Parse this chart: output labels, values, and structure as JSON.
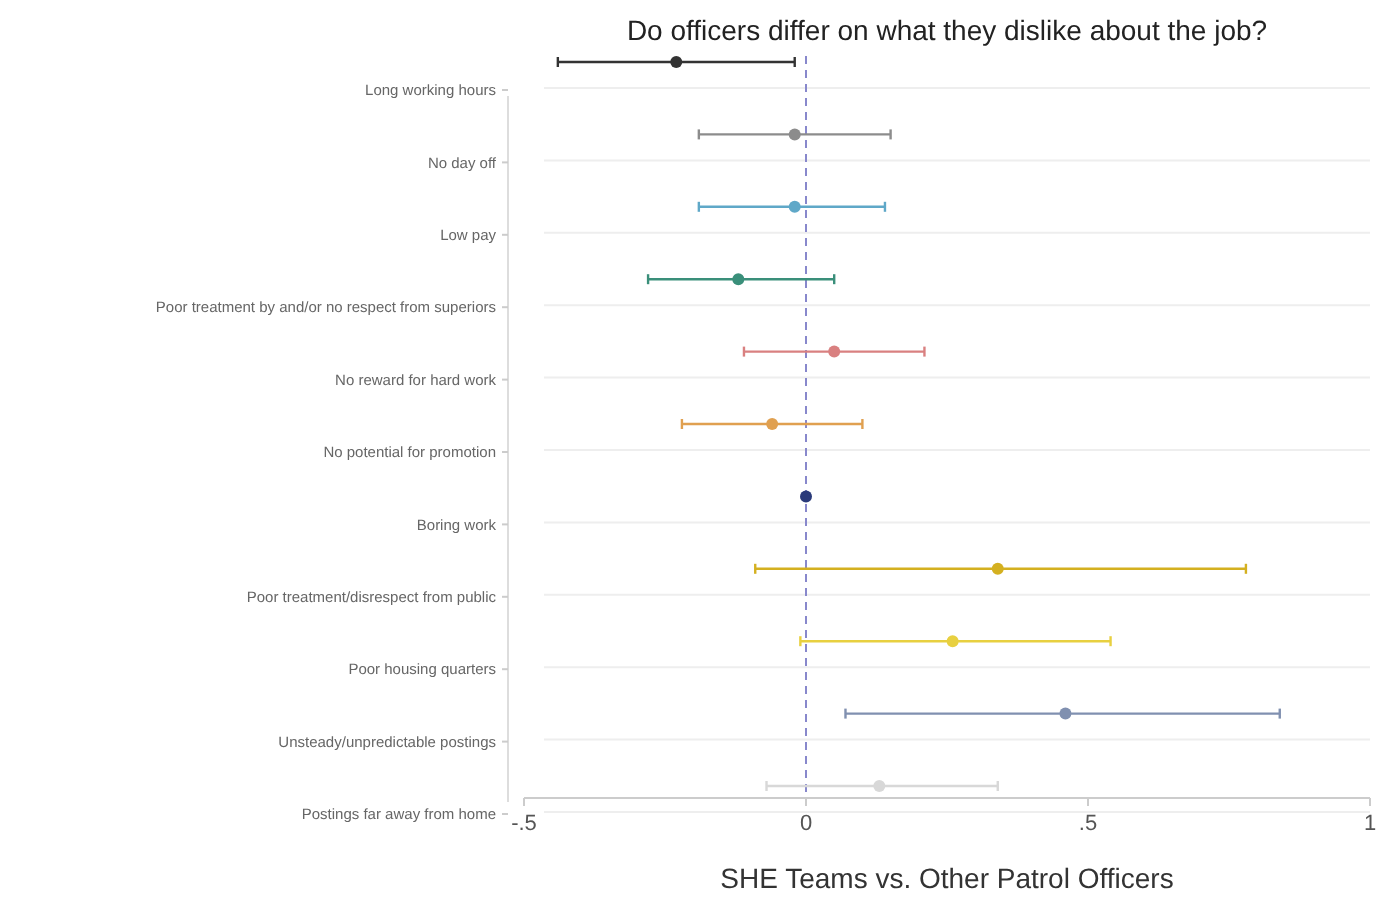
{
  "chart_data": {
    "type": "scatter",
    "orientation": "horizontal",
    "title": "Do officers differ on what they dislike about the job?",
    "xlabel": "SHE Teams vs. Other Patrol Officers",
    "categories": [
      "Long working hours",
      "No day off",
      "Low pay",
      "Poor treatment by and/or no respect from superiors",
      "No reward for hard work",
      "No potential for promotion",
      "Boring work",
      "Poor treatment/disrespect from public",
      "Poor housing quarters",
      "Unsteady/unpredictable postings",
      "Postings far away from home"
    ],
    "values": [
      -0.23,
      -0.02,
      -0.02,
      -0.12,
      0.05,
      -0.06,
      0.0,
      0.34,
      0.26,
      0.46,
      0.13
    ],
    "errors": [
      [
        -0.44,
        -0.02
      ],
      [
        -0.19,
        0.15
      ],
      [
        -0.19,
        0.14
      ],
      [
        -0.28,
        0.05
      ],
      [
        -0.11,
        0.21
      ],
      [
        -0.22,
        0.1
      ],
      null,
      [
        -0.09,
        0.78
      ],
      [
        -0.01,
        0.54
      ],
      [
        0.07,
        0.84
      ],
      [
        -0.07,
        0.34
      ]
    ],
    "colors": [
      "#333333",
      "#8c8c8c",
      "#5fa8c8",
      "#3a8f7a",
      "#d98080",
      "#e0a050",
      "#2a3a7a",
      "#d4b020",
      "#e8d040",
      "#8090b0",
      "#d8d8d8"
    ],
    "xlim": [
      -0.5,
      1
    ],
    "xticks": [
      {
        "value": -0.5,
        "label": "-.5"
      },
      0,
      {
        "value": 0.5,
        "label": ".5"
      },
      1
    ],
    "grid": "y",
    "marker": "circle",
    "ref_lines": [
      {
        "axis": "x",
        "value": 0,
        "color": "#8888cc",
        "line_style": "dashed"
      }
    ]
  }
}
